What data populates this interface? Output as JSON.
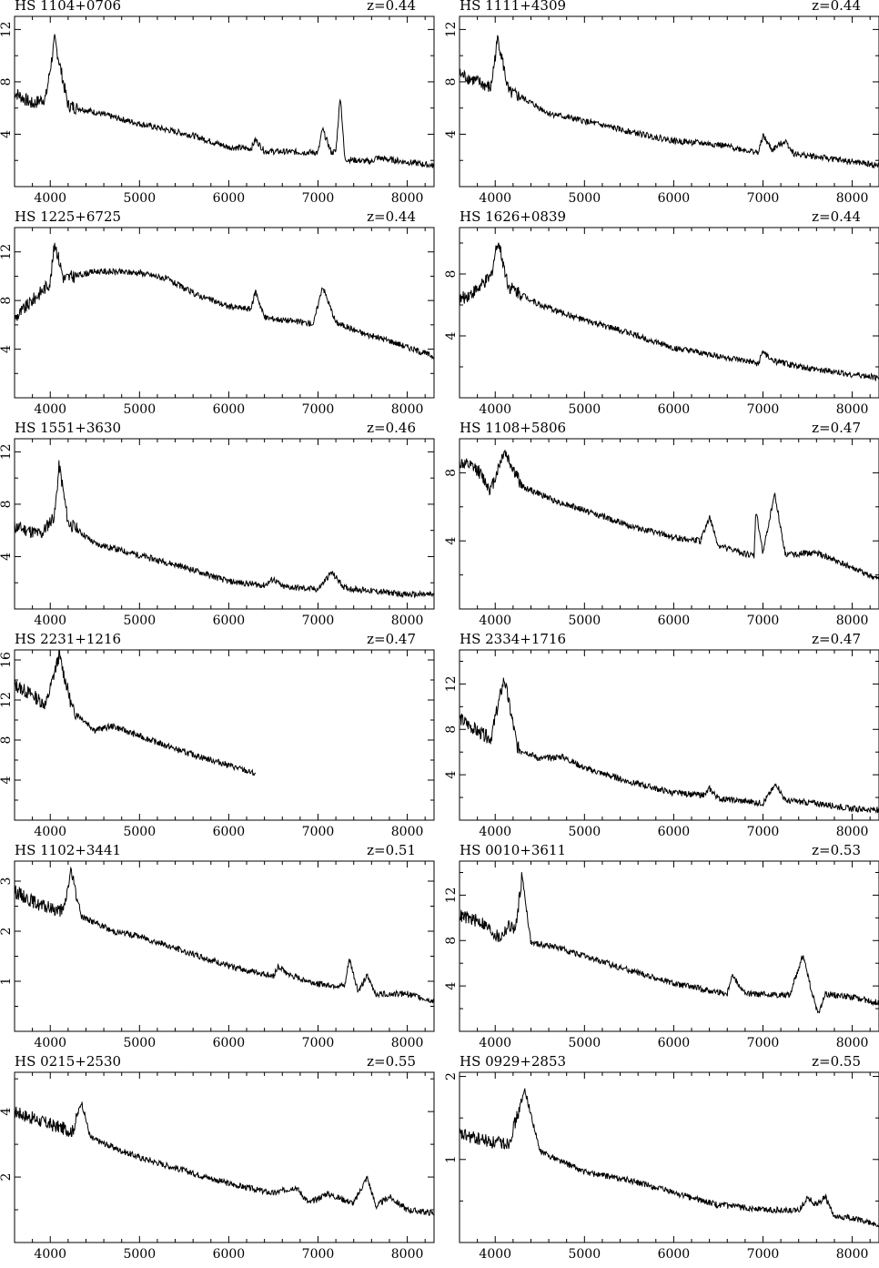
{
  "chart_data": [
    {
      "type": "line",
      "title": "HS 1104+0706",
      "annotation": "z=0.44",
      "xlim": [
        3600,
        8300
      ],
      "ylim": [
        0,
        13
      ],
      "xticks": [
        4000,
        5000,
        6000,
        7000,
        8000
      ],
      "yticks": [
        4,
        8,
        12
      ],
      "features": [
        [
          3600,
          7.2
        ],
        [
          3800,
          6.3
        ],
        [
          3950,
          6.8
        ],
        [
          4050,
          11.2
        ],
        [
          4200,
          6.2
        ],
        [
          4600,
          5.5
        ],
        [
          5000,
          4.8
        ],
        [
          5600,
          3.9
        ],
        [
          6000,
          3.0
        ],
        [
          6250,
          2.9
        ],
        [
          6300,
          3.6
        ],
        [
          6400,
          2.7
        ],
        [
          7000,
          2.6
        ],
        [
          7050,
          4.4
        ],
        [
          7150,
          2.6
        ],
        [
          7200,
          2.7
        ],
        [
          7250,
          7.0
        ],
        [
          7300,
          2.1
        ],
        [
          7600,
          1.9
        ],
        [
          7650,
          2.2
        ],
        [
          8300,
          1.6
        ]
      ]
    },
    {
      "type": "line",
      "title": "HS 1111+4309",
      "annotation": "z=0.44",
      "xlim": [
        3600,
        8300
      ],
      "ylim": [
        0,
        13
      ],
      "xticks": [
        4000,
        5000,
        6000,
        7000,
        8000
      ],
      "yticks": [
        4,
        8,
        12
      ],
      "features": [
        [
          3600,
          8.6
        ],
        [
          3800,
          8.0
        ],
        [
          3950,
          7.5
        ],
        [
          4030,
          11.4
        ],
        [
          4150,
          7.2
        ],
        [
          4300,
          6.8
        ],
        [
          4600,
          5.6
        ],
        [
          5000,
          5.0
        ],
        [
          5500,
          4.2
        ],
        [
          6000,
          3.5
        ],
        [
          6500,
          3.2
        ],
        [
          6950,
          2.6
        ],
        [
          7000,
          3.9
        ],
        [
          7100,
          2.8
        ],
        [
          7250,
          3.5
        ],
        [
          7350,
          2.5
        ],
        [
          8000,
          1.9
        ],
        [
          8300,
          1.6
        ]
      ]
    },
    {
      "type": "line",
      "title": "HS 1225+6725",
      "annotation": "z=0.44",
      "xlim": [
        3600,
        8300
      ],
      "ylim": [
        0,
        14
      ],
      "xticks": [
        4000,
        5000,
        6000,
        7000,
        8000
      ],
      "yticks": [
        4,
        8,
        12
      ],
      "features": [
        [
          3600,
          6.5
        ],
        [
          3800,
          8.0
        ],
        [
          4000,
          9.5
        ],
        [
          4050,
          12.8
        ],
        [
          4150,
          9.8
        ],
        [
          4500,
          10.4
        ],
        [
          5000,
          10.3
        ],
        [
          5300,
          9.8
        ],
        [
          5600,
          8.6
        ],
        [
          6000,
          7.5
        ],
        [
          6250,
          7.3
        ],
        [
          6300,
          8.8
        ],
        [
          6400,
          6.6
        ],
        [
          6950,
          6.1
        ],
        [
          7050,
          9.2
        ],
        [
          7200,
          6.2
        ],
        [
          7500,
          5.3
        ],
        [
          7800,
          4.7
        ],
        [
          8300,
          3.4
        ]
      ]
    },
    {
      "type": "line",
      "title": "HS 1626+0839",
      "annotation": "z=0.44",
      "xlim": [
        3600,
        8300
      ],
      "ylim": [
        0,
        11
      ],
      "xticks": [
        4000,
        5000,
        6000,
        7000,
        8000
      ],
      "yticks": [
        4,
        8
      ],
      "features": [
        [
          3600,
          6.3
        ],
        [
          3800,
          7.0
        ],
        [
          3950,
          7.8
        ],
        [
          4030,
          10.2
        ],
        [
          4150,
          7.2
        ],
        [
          4500,
          6.0
        ],
        [
          5000,
          5.0
        ],
        [
          5500,
          4.2
        ],
        [
          6000,
          3.2
        ],
        [
          6500,
          2.7
        ],
        [
          6950,
          2.2
        ],
        [
          7000,
          3.0
        ],
        [
          7100,
          2.4
        ],
        [
          7500,
          1.9
        ],
        [
          8000,
          1.5
        ],
        [
          8300,
          1.3
        ]
      ]
    },
    {
      "type": "line",
      "title": "HS 1551+3630",
      "annotation": "z=0.46",
      "xlim": [
        3600,
        8300
      ],
      "ylim": [
        0,
        13
      ],
      "xticks": [
        4000,
        5000,
        6000,
        7000,
        8000
      ],
      "yticks": [
        4,
        8,
        12
      ],
      "features": [
        [
          3600,
          6.3
        ],
        [
          3900,
          5.7
        ],
        [
          4050,
          7.2
        ],
        [
          4100,
          11.0
        ],
        [
          4200,
          6.6
        ],
        [
          4500,
          5.0
        ],
        [
          5000,
          4.1
        ],
        [
          5500,
          3.2
        ],
        [
          6000,
          2.1
        ],
        [
          6400,
          1.8
        ],
        [
          6500,
          2.3
        ],
        [
          6600,
          1.7
        ],
        [
          7000,
          1.5
        ],
        [
          7150,
          2.8
        ],
        [
          7300,
          1.6
        ],
        [
          8000,
          1.1
        ],
        [
          8300,
          1.1
        ]
      ]
    },
    {
      "type": "line",
      "title": "HS 1108+5806",
      "annotation": "z=0.47",
      "xlim": [
        3600,
        8300
      ],
      "ylim": [
        0,
        10
      ],
      "xticks": [
        4000,
        5000,
        6000,
        7000,
        8000
      ],
      "yticks": [
        4,
        8
      ],
      "features": [
        [
          3600,
          8.6
        ],
        [
          3800,
          8.2
        ],
        [
          3950,
          7.0
        ],
        [
          4100,
          9.3
        ],
        [
          4300,
          7.2
        ],
        [
          4700,
          6.3
        ],
        [
          5000,
          5.8
        ],
        [
          5500,
          4.9
        ],
        [
          6000,
          4.2
        ],
        [
          6300,
          4.0
        ],
        [
          6400,
          5.4
        ],
        [
          6500,
          3.7
        ],
        [
          6900,
          3.1
        ],
        [
          6920,
          5.8
        ],
        [
          7000,
          3.3
        ],
        [
          7130,
          6.8
        ],
        [
          7250,
          3.2
        ],
        [
          7600,
          3.3
        ],
        [
          8000,
          2.4
        ],
        [
          8300,
          1.7
        ]
      ]
    },
    {
      "type": "line",
      "title": "HS 2231+1216",
      "annotation": "z=0.47",
      "xlim": [
        3600,
        8300
      ],
      "ylim": [
        0,
        17
      ],
      "xticks": [
        4000,
        5000,
        6000,
        7000,
        8000
      ],
      "yticks": [
        4,
        8,
        12,
        16
      ],
      "features": [
        [
          3600,
          13.5
        ],
        [
          3800,
          12.5
        ],
        [
          3950,
          11.5
        ],
        [
          4100,
          16.5
        ],
        [
          4250,
          11.0
        ],
        [
          4500,
          9.0
        ],
        [
          4700,
          9.4
        ],
        [
          5000,
          8.4
        ],
        [
          5500,
          6.8
        ],
        [
          6000,
          5.5
        ],
        [
          6300,
          4.6
        ]
      ]
    },
    {
      "type": "line",
      "title": "HS 2334+1716",
      "annotation": "z=0.47",
      "xlim": [
        3600,
        8300
      ],
      "ylim": [
        0,
        15
      ],
      "xticks": [
        4000,
        5000,
        6000,
        7000,
        8000
      ],
      "yticks": [
        4,
        8,
        12
      ],
      "features": [
        [
          3600,
          9.0
        ],
        [
          3800,
          7.8
        ],
        [
          3950,
          7.2
        ],
        [
          4100,
          12.5
        ],
        [
          4250,
          6.4
        ],
        [
          4500,
          5.4
        ],
        [
          4750,
          5.6
        ],
        [
          5000,
          4.6
        ],
        [
          5500,
          3.4
        ],
        [
          6000,
          2.4
        ],
        [
          6350,
          2.2
        ],
        [
          6400,
          2.8
        ],
        [
          6500,
          1.9
        ],
        [
          7000,
          1.5
        ],
        [
          7150,
          3.2
        ],
        [
          7250,
          1.7
        ],
        [
          7600,
          1.5
        ],
        [
          8000,
          1.0
        ],
        [
          8300,
          0.9
        ]
      ]
    },
    {
      "type": "line",
      "title": "HS 1102+3441",
      "annotation": "z=0.51",
      "xlim": [
        3600,
        8300
      ],
      "ylim": [
        0,
        3.4
      ],
      "xticks": [
        4000,
        5000,
        6000,
        7000,
        8000
      ],
      "yticks": [
        1,
        2,
        3
      ],
      "features": [
        [
          3600,
          2.8
        ],
        [
          3900,
          2.5
        ],
        [
          4150,
          2.4
        ],
        [
          4230,
          3.2
        ],
        [
          4350,
          2.3
        ],
        [
          4700,
          2.0
        ],
        [
          5000,
          1.9
        ],
        [
          5500,
          1.6
        ],
        [
          6000,
          1.3
        ],
        [
          6500,
          1.1
        ],
        [
          6550,
          1.3
        ],
        [
          6700,
          1.1
        ],
        [
          7000,
          0.95
        ],
        [
          7300,
          0.9
        ],
        [
          7350,
          1.45
        ],
        [
          7450,
          0.8
        ],
        [
          7550,
          1.1
        ],
        [
          7650,
          0.75
        ],
        [
          8000,
          0.75
        ],
        [
          8300,
          0.6
        ]
      ]
    },
    {
      "type": "line",
      "title": "HS 0010+3611",
      "annotation": "z=0.53",
      "xlim": [
        3600,
        8300
      ],
      "ylim": [
        0,
        15
      ],
      "xticks": [
        4000,
        5000,
        6000,
        7000,
        8000
      ],
      "yticks": [
        4,
        8,
        12
      ],
      "features": [
        [
          3600,
          10.2
        ],
        [
          3850,
          9.6
        ],
        [
          4050,
          8.2
        ],
        [
          4150,
          9.3
        ],
        [
          4230,
          9.0
        ],
        [
          4300,
          13.8
        ],
        [
          4400,
          7.8
        ],
        [
          4700,
          7.4
        ],
        [
          5000,
          6.6
        ],
        [
          5500,
          5.4
        ],
        [
          6000,
          4.2
        ],
        [
          6600,
          3.3
        ],
        [
          6650,
          5.0
        ],
        [
          6800,
          3.3
        ],
        [
          7300,
          3.2
        ],
        [
          7450,
          6.8
        ],
        [
          7550,
          3.3
        ],
        [
          7620,
          1.5
        ],
        [
          7700,
          3.3
        ],
        [
          8000,
          3.0
        ],
        [
          8300,
          2.5
        ]
      ]
    },
    {
      "type": "line",
      "title": "HS 0215+2530",
      "annotation": "z=0.55",
      "xlim": [
        3600,
        8300
      ],
      "ylim": [
        0,
        5.2
      ],
      "xticks": [
        4000,
        5000,
        6000,
        7000,
        8000
      ],
      "yticks": [
        2,
        4
      ],
      "features": [
        [
          3600,
          4.0
        ],
        [
          3800,
          3.8
        ],
        [
          4000,
          3.6
        ],
        [
          4250,
          3.4
        ],
        [
          4350,
          4.3
        ],
        [
          4450,
          3.2
        ],
        [
          4800,
          2.8
        ],
        [
          5000,
          2.6
        ],
        [
          5500,
          2.2
        ],
        [
          6000,
          1.8
        ],
        [
          6500,
          1.5
        ],
        [
          6750,
          1.7
        ],
        [
          6900,
          1.2
        ],
        [
          7100,
          1.5
        ],
        [
          7400,
          1.2
        ],
        [
          7550,
          2.0
        ],
        [
          7650,
          1.1
        ],
        [
          7800,
          1.4
        ],
        [
          8000,
          1.0
        ],
        [
          8300,
          0.9
        ]
      ]
    },
    {
      "type": "line",
      "title": "HS 0929+2853",
      "annotation": "z=0.55",
      "xlim": [
        3600,
        8300
      ],
      "ylim": [
        0,
        2.05
      ],
      "xticks": [
        4000,
        5000,
        6000,
        7000,
        8000
      ],
      "yticks": [
        1,
        2
      ],
      "features": [
        [
          3600,
          1.3
        ],
        [
          3800,
          1.25
        ],
        [
          4000,
          1.2
        ],
        [
          4150,
          1.2
        ],
        [
          4300,
          1.7
        ],
        [
          4330,
          1.85
        ],
        [
          4500,
          1.1
        ],
        [
          4800,
          0.95
        ],
        [
          5000,
          0.85
        ],
        [
          5500,
          0.75
        ],
        [
          6000,
          0.6
        ],
        [
          6500,
          0.45
        ],
        [
          7000,
          0.4
        ],
        [
          7400,
          0.38
        ],
        [
          7500,
          0.55
        ],
        [
          7600,
          0.45
        ],
        [
          7700,
          0.55
        ],
        [
          7800,
          0.3
        ],
        [
          8000,
          0.3
        ],
        [
          8300,
          0.2
        ]
      ]
    }
  ]
}
